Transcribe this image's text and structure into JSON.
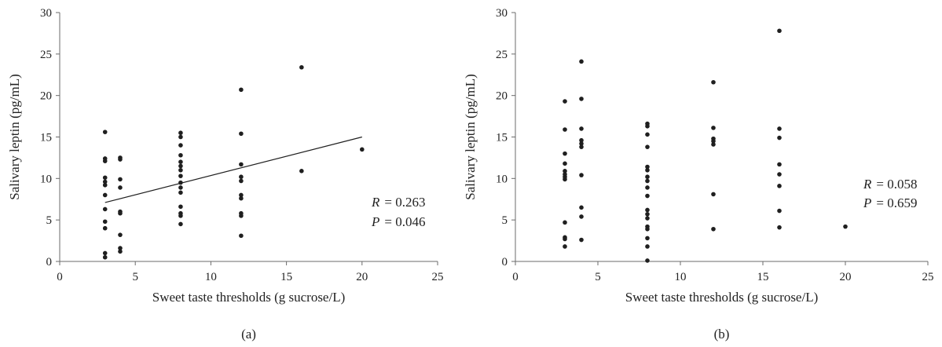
{
  "chart_data": [
    {
      "type": "scatter",
      "panel_label": "(a)",
      "xlabel": "Sweet taste thresholds (g sucrose/L)",
      "ylabel": "Salivary leptin (pg/mL)",
      "xlim": [
        0,
        25
      ],
      "ylim": [
        0,
        30
      ],
      "xticks": [
        0,
        5,
        10,
        15,
        20,
        25
      ],
      "yticks": [
        0,
        5,
        10,
        15,
        20,
        25,
        30
      ],
      "grid": false,
      "annotation": {
        "r_label": "R",
        "r_value": "= 0.263",
        "p_label": "P",
        "p_value": "= 0.046"
      },
      "trend_line": {
        "x": [
          3,
          20
        ],
        "y": [
          7.1,
          15.0
        ]
      },
      "points": [
        [
          3,
          15.6
        ],
        [
          3,
          12.4
        ],
        [
          3,
          12.1
        ],
        [
          3,
          10.1
        ],
        [
          3,
          9.6
        ],
        [
          3,
          9.2
        ],
        [
          3,
          8.0
        ],
        [
          3,
          6.3
        ],
        [
          3,
          4.8
        ],
        [
          3,
          4.0
        ],
        [
          3,
          1.0
        ],
        [
          3,
          0.5
        ],
        [
          4,
          12.5
        ],
        [
          4,
          12.3
        ],
        [
          4,
          9.9
        ],
        [
          4,
          8.9
        ],
        [
          4,
          6.0
        ],
        [
          4,
          5.8
        ],
        [
          4,
          3.2
        ],
        [
          4,
          1.6
        ],
        [
          4,
          1.2
        ],
        [
          8,
          15.5
        ],
        [
          8,
          15.0
        ],
        [
          8,
          14.0
        ],
        [
          8,
          12.8
        ],
        [
          8,
          12.0
        ],
        [
          8,
          11.5
        ],
        [
          8,
          11.0
        ],
        [
          8,
          10.3
        ],
        [
          8,
          9.5
        ],
        [
          8,
          8.9
        ],
        [
          8,
          8.3
        ],
        [
          8,
          6.6
        ],
        [
          8,
          5.8
        ],
        [
          8,
          5.5
        ],
        [
          8,
          4.5
        ],
        [
          12,
          20.7
        ],
        [
          12,
          15.4
        ],
        [
          12,
          11.7
        ],
        [
          12,
          10.2
        ],
        [
          12,
          9.7
        ],
        [
          12,
          8.0
        ],
        [
          12,
          7.6
        ],
        [
          12,
          5.8
        ],
        [
          12,
          5.5
        ],
        [
          12,
          3.1
        ],
        [
          16,
          23.4
        ],
        [
          16,
          10.9
        ],
        [
          20,
          13.5
        ]
      ]
    },
    {
      "type": "scatter",
      "panel_label": "(b)",
      "xlabel": "Sweet taste thresholds (g sucrose/L)",
      "ylabel": "Salivary leptin (pg/mL)",
      "xlim": [
        0,
        25
      ],
      "ylim": [
        0,
        30
      ],
      "xticks": [
        0,
        5,
        10,
        15,
        20,
        25
      ],
      "yticks": [
        0,
        5,
        10,
        15,
        20,
        25,
        30
      ],
      "grid": false,
      "annotation": {
        "r_label": "R",
        "r_value": "= 0.058",
        "p_label": "P",
        "p_value": "= 0.659"
      },
      "trend_line": null,
      "points": [
        [
          3,
          19.3
        ],
        [
          3,
          15.9
        ],
        [
          3,
          13.0
        ],
        [
          3,
          11.8
        ],
        [
          3,
          10.9
        ],
        [
          3,
          10.5
        ],
        [
          3,
          10.2
        ],
        [
          3,
          9.9
        ],
        [
          3,
          4.7
        ],
        [
          3,
          2.9
        ],
        [
          3,
          2.7
        ],
        [
          3,
          1.8
        ],
        [
          4,
          24.1
        ],
        [
          4,
          19.6
        ],
        [
          4,
          16.0
        ],
        [
          4,
          14.6
        ],
        [
          4,
          14.2
        ],
        [
          4,
          13.8
        ],
        [
          4,
          10.4
        ],
        [
          4,
          6.5
        ],
        [
          4,
          5.4
        ],
        [
          4,
          2.6
        ],
        [
          8,
          16.6
        ],
        [
          8,
          16.3
        ],
        [
          8,
          15.3
        ],
        [
          8,
          13.8
        ],
        [
          8,
          11.4
        ],
        [
          8,
          11.0
        ],
        [
          8,
          10.2
        ],
        [
          8,
          9.7
        ],
        [
          8,
          8.9
        ],
        [
          8,
          7.9
        ],
        [
          8,
          6.2
        ],
        [
          8,
          5.7
        ],
        [
          8,
          5.2
        ],
        [
          8,
          4.2
        ],
        [
          8,
          3.9
        ],
        [
          8,
          2.8
        ],
        [
          8,
          1.8
        ],
        [
          8,
          0.1
        ],
        [
          12,
          21.6
        ],
        [
          12,
          16.1
        ],
        [
          12,
          14.8
        ],
        [
          12,
          14.5
        ],
        [
          12,
          14.1
        ],
        [
          12,
          8.1
        ],
        [
          12,
          3.9
        ],
        [
          16,
          27.8
        ],
        [
          16,
          16.0
        ],
        [
          16,
          14.9
        ],
        [
          16,
          11.7
        ],
        [
          16,
          10.5
        ],
        [
          16,
          9.1
        ],
        [
          16,
          6.1
        ],
        [
          16,
          4.1
        ],
        [
          20,
          4.2
        ]
      ]
    }
  ]
}
